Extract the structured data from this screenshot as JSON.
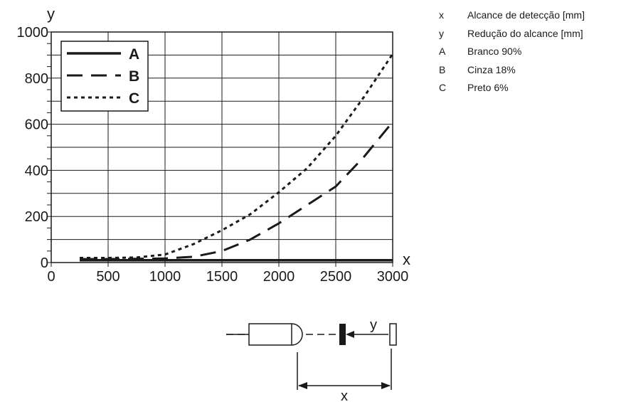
{
  "chart_data": {
    "type": "line",
    "xlabel": "x",
    "ylabel": "y",
    "xlim": [
      0,
      3000
    ],
    "ylim": [
      0,
      1000
    ],
    "xticks": [
      0,
      500,
      1000,
      1500,
      2000,
      2500,
      3000
    ],
    "yticks": [
      0,
      200,
      400,
      600,
      800,
      1000
    ],
    "grid": true,
    "legend_position": "top-left",
    "series": [
      {
        "name": "A",
        "style": "solid",
        "x": [
          250,
          500,
          1000,
          1500,
          2000,
          2500,
          3000
        ],
        "y": [
          10,
          10,
          10,
          10,
          10,
          10,
          10
        ]
      },
      {
        "name": "B",
        "style": "dashed",
        "x": [
          250,
          500,
          750,
          1000,
          1250,
          1500,
          1750,
          2000,
          2250,
          2500,
          2750,
          3000
        ],
        "y": [
          15,
          15,
          16,
          18,
          25,
          50,
          100,
          170,
          250,
          330,
          460,
          610
        ]
      },
      {
        "name": "C",
        "style": "dotted",
        "x": [
          250,
          500,
          750,
          1000,
          1250,
          1500,
          1750,
          2000,
          2250,
          2500,
          2750,
          3000
        ],
        "y": [
          20,
          20,
          22,
          35,
          80,
          140,
          210,
          305,
          410,
          550,
          720,
          905
        ]
      }
    ]
  },
  "key": [
    {
      "symbol": "x",
      "text": "Alcance de detecção [mm]"
    },
    {
      "symbol": "y",
      "text": "Redução do alcance [mm]"
    },
    {
      "symbol": "A",
      "text": "Branco 90%"
    },
    {
      "symbol": "B",
      "text": "Cinza 18%"
    },
    {
      "symbol": "C",
      "text": "Preto 6%"
    }
  ],
  "diagram": {
    "x_label": "x",
    "y_label": "y"
  }
}
